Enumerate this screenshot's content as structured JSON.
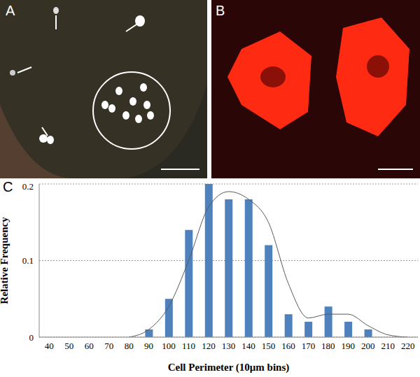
{
  "panels": [
    "A",
    "B",
    "C"
  ],
  "chart_data": {
    "type": "bar",
    "xlabel": "Cell Perimeter (10μm bins)",
    "ylabel": "Relative Frequency",
    "categories": [
      "40",
      "50",
      "60",
      "70",
      "80",
      "90",
      "100",
      "110",
      "120",
      "130",
      "140",
      "150",
      "160",
      "170",
      "180",
      "190",
      "200",
      "210",
      "220"
    ],
    "series": [
      {
        "type": "bar",
        "color": "#4f81bd",
        "values": [
          0,
          0,
          0,
          0,
          0,
          0.01,
          0.05,
          0.14,
          0.2,
          0.18,
          0.18,
          0.12,
          0.03,
          0.02,
          0.04,
          0.02,
          0.01,
          0,
          0
        ]
      },
      {
        "type": "line",
        "color": "#595959",
        "values": [
          null,
          null,
          null,
          null,
          0,
          0.01,
          0.04,
          0.1,
          0.17,
          0.19,
          0.18,
          0.15,
          0.07,
          0.025,
          0.03,
          0.03,
          0.015,
          0.003,
          0
        ]
      }
    ],
    "ylim": [
      0,
      0.2
    ],
    "yticks": [
      0,
      0.1,
      0.2
    ],
    "grid": true
  }
}
